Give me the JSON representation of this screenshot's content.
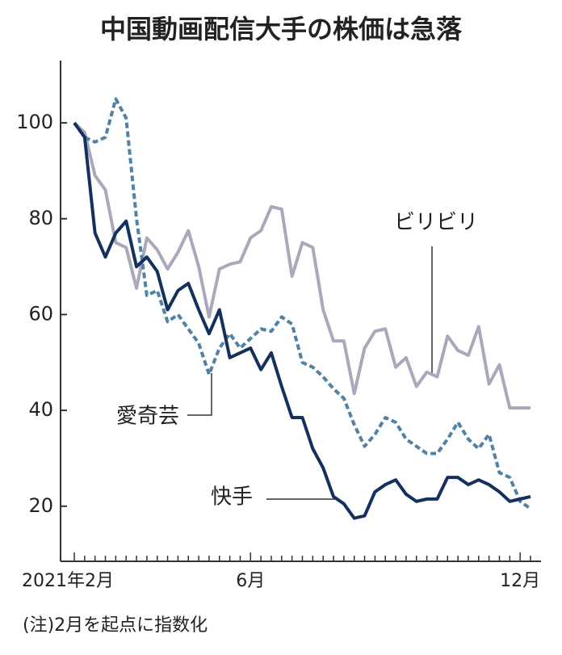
{
  "chart_data": {
    "type": "line",
    "title": "中国動画配信大手の株価は急落",
    "note": "(注)2月を起点に指数化",
    "categories": [
      "2021年2月",
      null,
      null,
      null,
      null,
      null,
      null,
      null,
      null,
      null,
      null,
      null,
      null,
      null,
      null,
      null,
      null,
      "6月",
      null,
      null,
      null,
      null,
      null,
      null,
      null,
      null,
      null,
      null,
      null,
      null,
      null,
      null,
      null,
      null,
      null,
      null,
      null,
      null,
      null,
      null,
      null,
      null,
      null,
      "12月",
      null
    ],
    "ylim": [
      8.5,
      113
    ],
    "yticks": [
      20,
      40,
      60,
      80,
      100
    ],
    "series": [
      {
        "name": "ビリビリ",
        "color": "#a8aabb",
        "dash": false,
        "values": [
          100,
          98,
          89,
          86,
          75,
          74,
          65.5,
          76,
          73.5,
          69.5,
          73,
          77.5,
          70,
          59.5,
          69.5,
          70.5,
          71,
          76,
          77.5,
          82.5,
          82,
          68,
          75,
          74,
          61,
          54.5,
          54.5,
          43.5,
          53,
          56.5,
          57,
          49,
          51,
          45,
          48,
          47,
          55.5,
          52.5,
          51.5,
          57.5,
          45.5,
          49.5,
          40.5,
          40.5,
          40.5
        ]
      },
      {
        "name": "愛奇芸",
        "color": "#4f82a6",
        "dash": true,
        "values": [
          100,
          97,
          96,
          97,
          105,
          101,
          80,
          64,
          65,
          58.5,
          60,
          57,
          54,
          47.5,
          53,
          56,
          53,
          55,
          57,
          56.5,
          59.5,
          58,
          50,
          49,
          47,
          44.5,
          42.5,
          37,
          32.5,
          35,
          38.5,
          37.5,
          34,
          32.5,
          31,
          31,
          34,
          37.5,
          34,
          32,
          35,
          27,
          26,
          21,
          19.5
        ]
      },
      {
        "name": "快手",
        "color": "#14305e",
        "dash": false,
        "values": [
          100,
          97,
          77,
          72,
          77,
          79.5,
          70,
          72,
          69,
          61,
          65,
          66.5,
          61,
          56,
          61,
          51,
          52,
          53,
          48.5,
          52,
          45,
          38.5,
          38.5,
          32,
          28,
          22,
          20.5,
          17.5,
          18,
          23,
          24.5,
          25.5,
          22.5,
          21,
          21.5,
          21.5,
          26,
          26,
          24.5,
          25.5,
          24.5,
          23,
          21,
          21.5,
          22
        ]
      }
    ]
  }
}
